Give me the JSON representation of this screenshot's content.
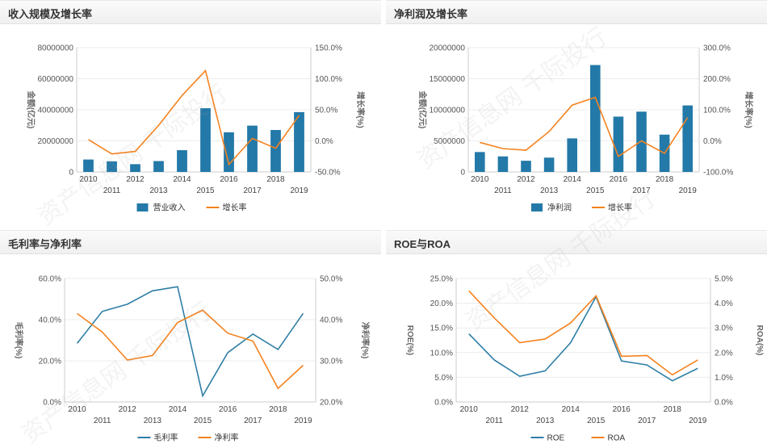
{
  "panels": [
    {
      "title": "收入规模及增长率"
    },
    {
      "title": "净利润及增长率"
    },
    {
      "title": "毛利率与净利率"
    },
    {
      "title": "ROE与ROA"
    }
  ],
  "watermark": "资产信息网 千际投行",
  "colors": {
    "bar": "#2379a8",
    "orange": "#f5821f",
    "blue": "#2f7fa6",
    "axis": "#cccccc",
    "tick": "#555555"
  },
  "chart_data": [
    {
      "type": "bar+line",
      "title": "收入规模及增长率",
      "categories": [
        "2010",
        "2011",
        "2012",
        "2013",
        "2014",
        "2015",
        "2016",
        "2017",
        "2018",
        "2019"
      ],
      "left_ticks": [
        "0",
        "20000000",
        "40000000",
        "60000000",
        "80000000"
      ],
      "right_ticks": [
        "-50.0%",
        "0.0%",
        "50.0%",
        "100.0%",
        "150.0%"
      ],
      "ylim_left": [
        0,
        80000000
      ],
      "ylim_right": [
        -50,
        150
      ],
      "ylabel_left": "金额(亿元)",
      "ylabel_right": "增长率(%)",
      "series": [
        {
          "name": "营业收入",
          "kind": "bar",
          "axis": "left",
          "values": [
            8000000,
            6800000,
            5000000,
            7000000,
            14000000,
            41000000,
            25500000,
            29800000,
            27000000,
            38500000
          ]
        },
        {
          "name": "增长率",
          "kind": "line",
          "axis": "right",
          "values": [
            2,
            -21,
            -17,
            25,
            73,
            113,
            -38,
            4,
            -12,
            41
          ]
        }
      ]
    },
    {
      "type": "bar+line",
      "title": "净利润及增长率",
      "categories": [
        "2010",
        "2011",
        "2012",
        "2013",
        "2014",
        "2015",
        "2016",
        "2017",
        "2018",
        "2019"
      ],
      "left_ticks": [
        "0",
        "5000000",
        "10000000",
        "15000000",
        "20000000"
      ],
      "right_ticks": [
        "-100.0%",
        "0.0%",
        "100.0%",
        "200.0%",
        "300.0%"
      ],
      "ylim_left": [
        0,
        20000000
      ],
      "ylim_right": [
        -100,
        300
      ],
      "ylabel_left": "金额(亿元)",
      "ylabel_right": "增长率(%)",
      "series": [
        {
          "name": "净利润",
          "kind": "bar",
          "axis": "left",
          "values": [
            3200000,
            2500000,
            1800000,
            2300000,
            5400000,
            17200000,
            8900000,
            9700000,
            6000000,
            10700000
          ]
        },
        {
          "name": "增长率",
          "kind": "line",
          "axis": "right",
          "values": [
            -5,
            -25,
            -30,
            30,
            115,
            140,
            -50,
            0,
            -40,
            75
          ]
        }
      ]
    },
    {
      "type": "line",
      "title": "毛利率与净利率",
      "categories": [
        "2010",
        "2011",
        "2012",
        "2013",
        "2014",
        "2015",
        "2016",
        "2017",
        "2018",
        "2019"
      ],
      "left_ticks": [
        "0.0%",
        "20.0%",
        "40.0%",
        "60.0%"
      ],
      "right_ticks": [
        "20.0%",
        "30.0%",
        "40.0%",
        "50.0%"
      ],
      "ylim_left": [
        0,
        60
      ],
      "ylim_right": [
        20,
        50
      ],
      "ylabel_left": "毛利率(%)",
      "ylabel_right": "净利率(%)",
      "series": [
        {
          "name": "毛利率",
          "kind": "line",
          "axis": "left",
          "color": "#2f7fa6",
          "values": [
            28.5,
            44,
            47.5,
            54,
            56,
            3,
            24,
            33,
            25.5,
            43
          ]
        },
        {
          "name": "净利率",
          "kind": "line",
          "axis": "right",
          "color": "#f5821f",
          "values": [
            41.5,
            37,
            30.2,
            31.3,
            39.3,
            42.3,
            36.7,
            34.8,
            23.3,
            28.9
          ]
        }
      ]
    },
    {
      "type": "line",
      "title": "ROE与ROA",
      "categories": [
        "2010",
        "2011",
        "2012",
        "2013",
        "2014",
        "2015",
        "2016",
        "2017",
        "2018",
        "2019"
      ],
      "left_ticks": [
        "0.0%",
        "5.0%",
        "10.0%",
        "15.0%",
        "20.0%",
        "25.0%"
      ],
      "right_ticks": [
        "0.0%",
        "1.0%",
        "2.0%",
        "3.0%",
        "4.0%",
        "5.0%"
      ],
      "ylim_left": [
        0,
        25
      ],
      "ylim_right": [
        0,
        5
      ],
      "ylabel_left": "ROE(%)",
      "ylabel_right": "ROA(%)",
      "series": [
        {
          "name": "ROE",
          "kind": "line",
          "axis": "left",
          "color": "#2f7fa6",
          "values": [
            13.8,
            8.5,
            5.2,
            6.3,
            12,
            21.3,
            8.3,
            7.5,
            4.3,
            6.8
          ]
        },
        {
          "name": "ROA",
          "kind": "line",
          "axis": "right",
          "color": "#f5821f",
          "values": [
            4.5,
            3.4,
            2.4,
            2.55,
            3.2,
            4.3,
            1.85,
            1.88,
            1.1,
            1.7
          ]
        }
      ]
    }
  ]
}
